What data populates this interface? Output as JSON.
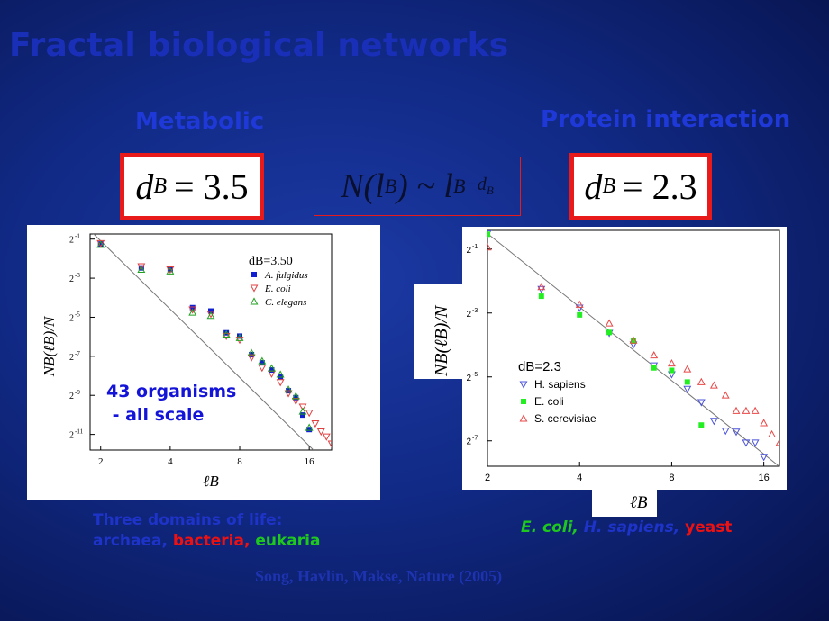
{
  "title": "Fractal biological networks",
  "left_heading": "Metabolic",
  "right_heading": "Protein interaction",
  "left_eq": {
    "sym": "d",
    "sub": "B",
    "rhs": "= 3.5"
  },
  "center_eq": {
    "lhs": "N(l",
    "sub": "B",
    "mid": ") ~ l",
    "sub2": "B",
    "sup": "−d",
    "supsub": "B"
  },
  "right_eq": {
    "sym": "d",
    "sub": "B",
    "rhs": "= 2.3"
  },
  "annotation": {
    "line1": "43 organisms",
    "line2": " - all scale"
  },
  "left_caption": {
    "line1": "Three domains of life:",
    "archaea": "archaea,",
    "bacteria": "bacteria,",
    "eukaria": "eukaria"
  },
  "right_caption": {
    "ecoli": "E. coli,",
    "hsap": "H. sapiens,",
    "yeast": "yeast"
  },
  "citation": "Song, Havlin, Makse, Nature  (2005)",
  "colors": {
    "highlight_red": "#e81a1a",
    "blue_text": "#1414d8",
    "green_text": "#1ec81e",
    "red_text": "#ee1111"
  },
  "chart_data": [
    {
      "type": "scatter",
      "xlabel": "ℓB",
      "ylabel": "NB(ℓB)/N",
      "x_scale": "log2",
      "y_scale": "log2",
      "xlim": [
        1.8,
        20
      ],
      "ylim": [
        0.00028,
        0.6
      ],
      "x_ticks": [
        2,
        4,
        8,
        16
      ],
      "y_ticks": [
        {
          "value": 0.5,
          "label": "2",
          "exp": "-1"
        },
        {
          "value": 0.125,
          "label": "2",
          "exp": "-3"
        },
        {
          "value": 0.03125,
          "label": "2",
          "exp": "-5"
        },
        {
          "value": 0.0078125,
          "label": "2",
          "exp": "-7"
        },
        {
          "value": 0.001953,
          "label": "2",
          "exp": "-9"
        },
        {
          "value": 0.000488,
          "label": "2",
          "exp": "-11"
        }
      ],
      "legend_title": "dB=3.50",
      "legend_position": "top-right",
      "fit_line": {
        "exponent": -3.5,
        "x0": 1.8,
        "y0": 0.68
      },
      "series": [
        {
          "name": "A. fulgidus",
          "marker": "square",
          "color": "#1020d0",
          "x": [
            2,
            3,
            4,
            5,
            6,
            7,
            8,
            9,
            10,
            11,
            12,
            13,
            14,
            15,
            16
          ],
          "y": [
            0.42,
            0.18,
            0.17,
            0.044,
            0.039,
            0.018,
            0.016,
            0.0083,
            0.0062,
            0.0048,
            0.0038,
            0.0023,
            0.0018,
            0.00097,
            0.00058
          ]
        },
        {
          "name": "E. coli",
          "marker": "triangle-down",
          "color": "#e04040",
          "x": [
            2,
            3,
            4,
            5,
            6,
            7,
            8,
            9,
            10,
            11,
            12,
            13,
            14,
            15,
            16,
            17,
            18,
            19,
            20
          ],
          "y": [
            0.43,
            0.19,
            0.17,
            0.041,
            0.035,
            0.016,
            0.014,
            0.0075,
            0.0052,
            0.0042,
            0.0031,
            0.0021,
            0.0016,
            0.0013,
            0.00105,
            0.00072,
            0.00054,
            0.00045,
            0.00035
          ]
        },
        {
          "name": "C. elegans",
          "marker": "triangle-up",
          "color": "#22a022",
          "x": [
            2,
            3,
            4,
            5,
            6,
            7,
            8,
            9,
            10,
            11,
            12,
            13,
            14,
            15,
            16
          ],
          "y": [
            0.41,
            0.17,
            0.16,
            0.037,
            0.033,
            0.017,
            0.015,
            0.0088,
            0.0066,
            0.0051,
            0.0041,
            0.0024,
            0.0019,
            0.0011,
            0.00062
          ]
        }
      ]
    },
    {
      "type": "scatter",
      "xlabel": "ℓB",
      "ylabel": "NB(ℓB)/N",
      "x_scale": "log2",
      "y_scale": "log2",
      "xlim": [
        2,
        18
      ],
      "ylim": [
        0.0045,
        0.75
      ],
      "x_ticks": [
        2,
        4,
        8,
        16
      ],
      "y_ticks": [
        {
          "value": 0.5,
          "label": "2",
          "exp": "-1"
        },
        {
          "value": 0.125,
          "label": "2",
          "exp": "-3"
        },
        {
          "value": 0.03125,
          "label": "2",
          "exp": "-5"
        },
        {
          "value": 0.0078125,
          "label": "2",
          "exp": "-7"
        }
      ],
      "legend_title": "dB=2.3",
      "legend_position": "bottom-left",
      "fit_line": {
        "exponent": -2.3,
        "x0": 2,
        "y0": 0.7
      },
      "series": [
        {
          "name": "H. sapiens",
          "marker": "triangle-down",
          "color": "#4a52d8",
          "x": [
            2,
            3,
            4,
            5,
            6,
            7,
            8,
            9,
            10,
            11,
            12,
            13,
            14,
            15,
            16
          ],
          "y": [
            0.7,
            0.21,
            0.14,
            0.081,
            0.063,
            0.04,
            0.033,
            0.024,
            0.018,
            0.012,
            0.0097,
            0.0095,
            0.0075,
            0.0075,
            0.0055
          ]
        },
        {
          "name": "E. coli",
          "marker": "square",
          "color": "#22ee22",
          "x": [
            2,
            3,
            4,
            5,
            6,
            7,
            8,
            9,
            10
          ],
          "y": [
            0.69,
            0.18,
            0.12,
            0.082,
            0.068,
            0.038,
            0.036,
            0.028,
            0.011
          ]
        },
        {
          "name": "S. cerevisiae",
          "marker": "triangle-up",
          "color": "#e84848",
          "x": [
            2,
            3,
            4,
            5,
            6,
            7,
            8,
            9,
            10,
            11,
            12,
            13,
            14,
            15,
            16,
            17,
            18
          ],
          "y": [
            0.52,
            0.22,
            0.15,
            0.1,
            0.069,
            0.05,
            0.042,
            0.037,
            0.028,
            0.026,
            0.021,
            0.015,
            0.015,
            0.015,
            0.0115,
            0.009,
            0.0075
          ]
        }
      ]
    }
  ]
}
